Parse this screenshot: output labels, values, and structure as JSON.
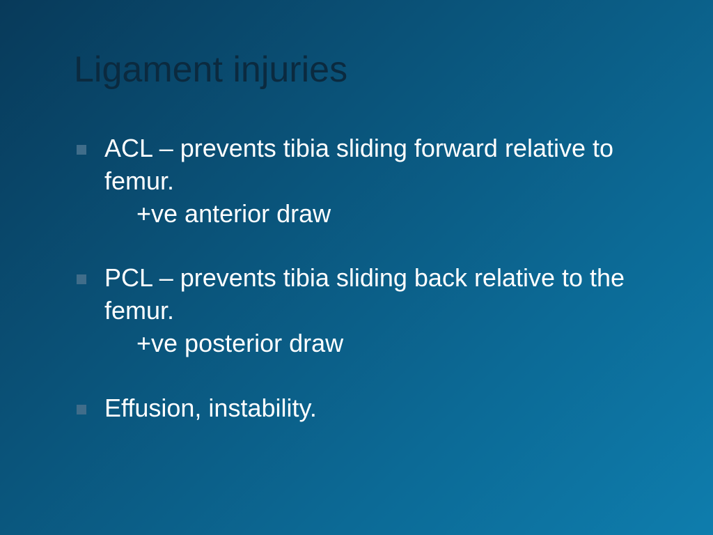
{
  "slide": {
    "title": "Ligament injuries",
    "title_color": "#0b2a3f",
    "title_fontsize": 52,
    "body_color": "#ffffff",
    "body_fontsize": 36,
    "bullet_color": "#406d8a",
    "background_gradient": [
      "#083a5a",
      "#0a5278",
      "#0c6a96",
      "#0e7dad"
    ],
    "items": [
      {
        "line1": "ACL – prevents tibia sliding forward relative to femur.",
        "line2": "+ve anterior draw"
      },
      {
        "line1": "PCL – prevents tibia sliding back relative to the femur.",
        "line2": "+ve posterior draw"
      },
      {
        "line1": "Effusion, instability.",
        "line2": ""
      }
    ]
  }
}
